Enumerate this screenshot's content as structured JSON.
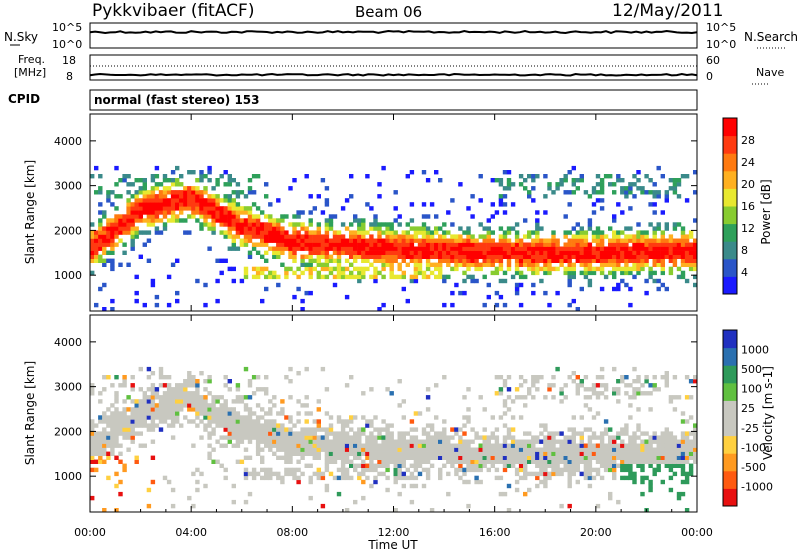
{
  "header": {
    "station": "Pykkvibaer (fitACF)",
    "beam": "Beam 06",
    "date": "12/May/2011"
  },
  "side_panels": {
    "nsky_label": "N.Sky",
    "nsky_ticks": [
      "10^5",
      "10^0"
    ],
    "nsearch_label": "N.Search",
    "freq_label_1": "Freq.",
    "freq_label_2": "[MHz]",
    "freq_ticks": [
      "18",
      "8"
    ],
    "nave_ticks": [
      "60",
      "0"
    ],
    "nave_label": "Nave",
    "cpid_label": "CPID",
    "cpid_value": "normal (fast stereo) 153"
  },
  "xaxis": {
    "label": "Time UT",
    "ticks": [
      "00:00",
      "04:00",
      "08:00",
      "12:00",
      "16:00",
      "20:00",
      "00:00"
    ]
  },
  "colors": {
    "power_scale": [
      "#1a1aff",
      "#2a55c8",
      "#3a8a8a",
      "#2ea05a",
      "#88cc30",
      "#e8e830",
      "#ffb020",
      "#ff7a10",
      "#ff3a10",
      "#ff0000"
    ],
    "velocity_scale": [
      "#e81010",
      "#ff5a10",
      "#ff9a20",
      "#ffd040",
      "#c8c8c0",
      "#c8c8c0",
      "#60c040",
      "#2e9a5a",
      "#2a70b0",
      "#2030c0"
    ]
  },
  "chart_data": [
    {
      "type": "heatmap",
      "name": "power-panel",
      "ylabel": "Slant Range [km]",
      "yticks": [
        "1000",
        "2000",
        "3000",
        "4000"
      ],
      "ylim": [
        200,
        4600
      ],
      "xlim": [
        0,
        24
      ],
      "colorbar_label": "Power [dB]",
      "colorbar_ticks": [
        "4",
        "8",
        "12",
        "16",
        "20",
        "24",
        "28"
      ],
      "colorbar_range": [
        0,
        32
      ],
      "band_center_km": [
        [
          0,
          1550
        ],
        [
          2,
          2400
        ],
        [
          4,
          2700
        ],
        [
          6,
          2050
        ],
        [
          8,
          1700
        ],
        [
          12,
          1550
        ],
        [
          16,
          1450
        ],
        [
          20,
          1450
        ],
        [
          24,
          1500
        ]
      ]
    },
    {
      "type": "heatmap",
      "name": "velocity-panel",
      "ylabel": "Slant Range [km]",
      "yticks": [
        "1000",
        "2000",
        "3000",
        "4000"
      ],
      "ylim": [
        200,
        4600
      ],
      "xlim": [
        0,
        24
      ],
      "colorbar_label": "Velocity [m s-1]",
      "colorbar_ticks": [
        "-1000",
        "-500",
        "-100",
        "-25",
        "25",
        "100",
        "500",
        "1000"
      ],
      "colorbar_range": [
        -1250,
        1250
      ]
    }
  ]
}
